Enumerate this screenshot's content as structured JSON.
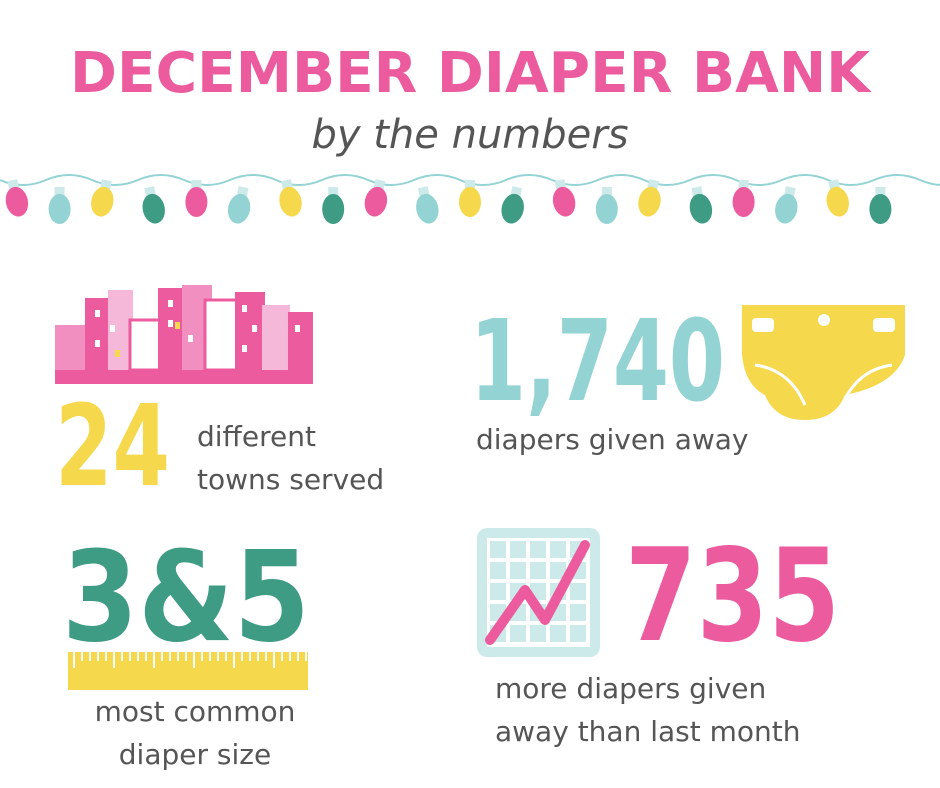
{
  "header": {
    "title": "DECEMBER DIAPER BANK",
    "subtitle": "by the numbers"
  },
  "stats": [
    {
      "number": "24",
      "label_lines": [
        "different",
        "towns served"
      ]
    },
    {
      "number": "1,740",
      "label_lines": [
        "diapers given away"
      ]
    },
    {
      "number": "3&5",
      "label_lines": [
        "most common",
        "diaper size"
      ]
    },
    {
      "number": "735",
      "label_lines": [
        "more diapers given",
        "away than last month"
      ]
    }
  ]
}
